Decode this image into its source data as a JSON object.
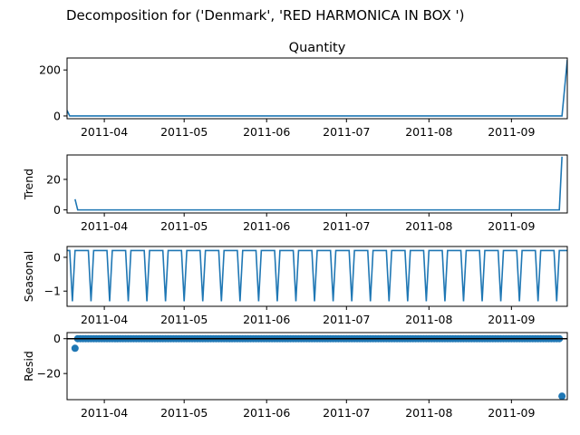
{
  "chart_data": {
    "type": "line",
    "suptitle": "Decomposition for ('Denmark', 'RED  HARMONICA IN BOX ')",
    "x_range": [
      "2011-03-18",
      "2011-09-22"
    ],
    "x_tick_labels": [
      "2011-04",
      "2011-05",
      "2011-06",
      "2011-07",
      "2011-08",
      "2011-09"
    ],
    "x_tick_dates": [
      "2011-04-01",
      "2011-05-01",
      "2011-06-01",
      "2011-07-01",
      "2011-08-01",
      "2011-09-01"
    ],
    "line_color": "#1f77b4",
    "panels": [
      {
        "key": "observed",
        "title": "Quantity",
        "ylabel": "",
        "kind": "line",
        "ylim": [
          -12,
          252
        ],
        "yticks": [
          0,
          200
        ],
        "points": [
          {
            "date": "2011-03-18",
            "value": 24
          },
          {
            "date": "2011-03-19",
            "value": 0
          },
          {
            "date": "2011-09-20",
            "value": 0
          },
          {
            "date": "2011-09-22",
            "value": 244
          }
        ]
      },
      {
        "key": "trend",
        "title": "",
        "ylabel": "Trend",
        "kind": "line",
        "ylim": [
          -2,
          36
        ],
        "yticks": [
          0,
          20
        ],
        "points": [
          {
            "date": "2011-03-21",
            "value": 7
          },
          {
            "date": "2011-03-22",
            "value": 0
          },
          {
            "date": "2011-09-19",
            "value": 0
          },
          {
            "date": "2011-09-20",
            "value": 34.9
          }
        ]
      },
      {
        "key": "seasonal",
        "title": "",
        "ylabel": "Seasonal",
        "kind": "seasonal",
        "ylim": [
          -1.45,
          0.32
        ],
        "yticks": [
          0,
          -1
        ],
        "high": 0.2,
        "low": -1.3,
        "period_start": "2011-03-18",
        "period_days": 7
      },
      {
        "key": "resid",
        "title": "",
        "ylabel": "Resid",
        "kind": "scatter",
        "ylim": [
          -35,
          3.5
        ],
        "yticks": [
          0,
          -20
        ],
        "zero_line": true,
        "points": [
          {
            "date": "2011-03-21",
            "value": -5.5
          },
          {
            "date": "2011-09-20",
            "value": -33
          }
        ],
        "flat_start": "2011-03-22",
        "flat_end": "2011-09-19",
        "flat_value": 0
      }
    ]
  }
}
